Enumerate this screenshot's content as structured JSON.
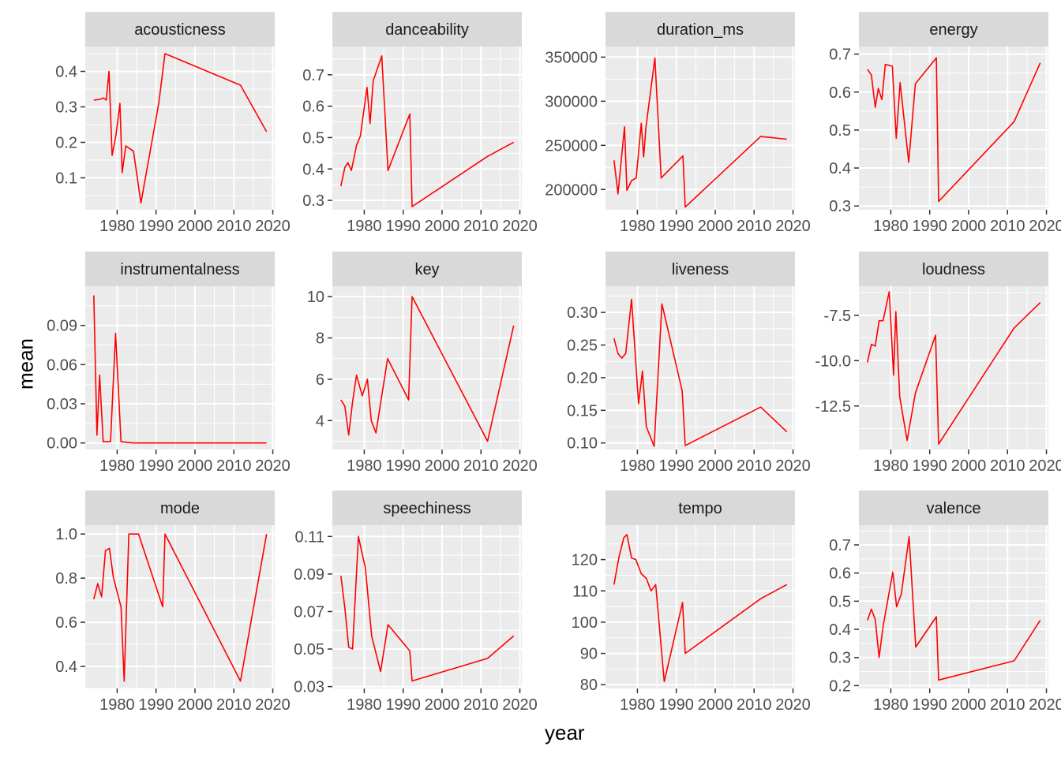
{
  "chart_data": {
    "type": "line",
    "xlabel": "year",
    "ylabel": "mean",
    "x_ticks": [
      1980,
      1990,
      2000,
      2010,
      2020
    ],
    "line_color": "#ff0000",
    "panel_background": "#ebebeb",
    "strip_background": "#d9d9d9",
    "grid": true,
    "panels": [
      {
        "title": "acousticness",
        "ylim": [
          0.01,
          0.47
        ],
        "yticks": [
          {
            "v": 0.1,
            "label": "0.1"
          },
          {
            "v": 0.2,
            "label": "0.2"
          },
          {
            "v": 0.3,
            "label": "0.3"
          },
          {
            "v": 0.4,
            "label": "0.4"
          }
        ],
        "x": [
          1974,
          1975.5,
          1976.5,
          1977.2,
          1977.9,
          1978.7,
          1979.7,
          1980.7,
          1981.3,
          1982.2,
          1984.2,
          1986.1,
          1990.7,
          1992.3,
          2011.7,
          2018.4
        ],
        "y": [
          0.319,
          0.321,
          0.325,
          0.319,
          0.4,
          0.163,
          0.22,
          0.31,
          0.115,
          0.19,
          0.175,
          0.029,
          0.31,
          0.45,
          0.361,
          0.23
        ]
      },
      {
        "title": "danceability",
        "ylim": [
          0.27,
          0.79
        ],
        "yticks": [
          {
            "v": 0.3,
            "label": "0.3"
          },
          {
            "v": 0.4,
            "label": "0.4"
          },
          {
            "v": 0.5,
            "label": "0.5"
          },
          {
            "v": 0.6,
            "label": "0.6"
          },
          {
            "v": 0.7,
            "label": "0.7"
          }
        ],
        "x": [
          1974,
          1975,
          1975.8,
          1976.7,
          1978,
          1979,
          1980.7,
          1981.5,
          1982.3,
          1984.5,
          1986.1,
          1991.7,
          1992.3,
          2011.7,
          2018.4
        ],
        "y": [
          0.345,
          0.405,
          0.42,
          0.395,
          0.475,
          0.505,
          0.66,
          0.545,
          0.68,
          0.76,
          0.395,
          0.575,
          0.28,
          0.44,
          0.485
        ]
      },
      {
        "title": "duration_ms",
        "ylim": [
          177000,
          362000
        ],
        "yticks": [
          {
            "v": 200000,
            "label": "200000"
          },
          {
            "v": 250000,
            "label": "250000"
          },
          {
            "v": 300000,
            "label": "300000"
          },
          {
            "v": 350000,
            "label": "350000"
          }
        ],
        "x": [
          1974,
          1975,
          1976.7,
          1977.3,
          1978.5,
          1979.7,
          1981,
          1981.6,
          1982.2,
          1984.5,
          1986.1,
          1991.7,
          1992.3,
          2011.7,
          2018.4
        ],
        "y": [
          233000,
          195000,
          271000,
          199000,
          210000,
          213000,
          275000,
          237000,
          271000,
          349000,
          213000,
          238000,
          180000,
          260000,
          257000
        ]
      },
      {
        "title": "energy",
        "ylim": [
          0.29,
          0.72
        ],
        "yticks": [
          {
            "v": 0.3,
            "label": "0.3"
          },
          {
            "v": 0.4,
            "label": "0.4"
          },
          {
            "v": 0.5,
            "label": "0.5"
          },
          {
            "v": 0.6,
            "label": "0.6"
          },
          {
            "v": 0.7,
            "label": "0.7"
          }
        ],
        "x": [
          1974,
          1975,
          1976,
          1976.8,
          1977.7,
          1978.6,
          1980.4,
          1981.4,
          1982.4,
          1984.6,
          1986.3,
          1991.7,
          1992.3,
          2011.7,
          2018.4
        ],
        "y": [
          0.66,
          0.645,
          0.56,
          0.61,
          0.58,
          0.673,
          0.668,
          0.478,
          0.625,
          0.415,
          0.622,
          0.69,
          0.312,
          0.522,
          0.677
        ]
      },
      {
        "title": "instrumentalness",
        "ylim": [
          -0.005,
          0.12
        ],
        "yticks": [
          {
            "v": 0,
            "label": "0.00"
          },
          {
            "v": 0.03,
            "label": "0.03"
          },
          {
            "v": 0.06,
            "label": "0.06"
          },
          {
            "v": 0.09,
            "label": "0.09"
          }
        ],
        "x": [
          1974,
          1974.8,
          1975.5,
          1976.4,
          1977.4,
          1978.3,
          1979.6,
          1981,
          1983,
          1984.2,
          2018.4
        ],
        "y": [
          0.113,
          0.006,
          0.052,
          0.001,
          0.001,
          0.001,
          0.084,
          0.001,
          0.0003,
          0.0,
          0.0
        ]
      },
      {
        "title": "key",
        "ylim": [
          2.6,
          10.5
        ],
        "yticks": [
          {
            "v": 4,
            "label": "4"
          },
          {
            "v": 6,
            "label": "6"
          },
          {
            "v": 8,
            "label": "8"
          },
          {
            "v": 10,
            "label": "10"
          }
        ],
        "x": [
          1974,
          1975,
          1976,
          1977,
          1978,
          1979.5,
          1980.8,
          1981.8,
          1983,
          1986,
          1991.4,
          1992.3,
          2011.7,
          2018.4
        ],
        "y": [
          5,
          4.7,
          3.3,
          4.9,
          6.2,
          5.2,
          6,
          4,
          3.4,
          7,
          5,
          10,
          3,
          8.6
        ]
      },
      {
        "title": "liveness",
        "ylim": [
          0.09,
          0.34
        ],
        "yticks": [
          {
            "v": 0.1,
            "label": "0.10"
          },
          {
            "v": 0.15,
            "label": "0.15"
          },
          {
            "v": 0.2,
            "label": "0.20"
          },
          {
            "v": 0.25,
            "label": "0.25"
          },
          {
            "v": 0.3,
            "label": "0.30"
          }
        ],
        "x": [
          1974,
          1975,
          1976,
          1977,
          1978.5,
          1980.3,
          1981.3,
          1982.3,
          1984.3,
          1986.3,
          1991.5,
          1992.3,
          2011.7,
          2018.4
        ],
        "y": [
          0.26,
          0.237,
          0.23,
          0.237,
          0.32,
          0.16,
          0.21,
          0.125,
          0.095,
          0.313,
          0.18,
          0.096,
          0.155,
          0.117
        ]
      },
      {
        "title": "loudness",
        "ylim": [
          -14.9,
          -5.9
        ],
        "yticks": [
          {
            "v": -12.5,
            "label": "-12.5"
          },
          {
            "v": -10,
            "label": "-10.0"
          },
          {
            "v": -7.5,
            "label": "-7.5"
          }
        ],
        "x": [
          1974,
          1975,
          1976,
          1977,
          1978,
          1979.6,
          1980.7,
          1981.3,
          1982.3,
          1984.2,
          1986.3,
          1991.5,
          1992.3,
          2011.7,
          2018.4
        ],
        "y": [
          -10.1,
          -9.1,
          -9.2,
          -7.8,
          -7.8,
          -6.2,
          -10.8,
          -7.3,
          -12,
          -14.4,
          -11.8,
          -8.6,
          -14.6,
          -8.2,
          -6.8
        ]
      },
      {
        "title": "mode",
        "ylim": [
          0.3,
          1.04
        ],
        "yticks": [
          {
            "v": 0.4,
            "label": "0.4"
          },
          {
            "v": 0.6,
            "label": "0.6"
          },
          {
            "v": 0.8,
            "label": "0.8"
          },
          {
            "v": 1.0,
            "label": "1.0"
          }
        ],
        "x": [
          1974,
          1975,
          1976,
          1977,
          1978,
          1979,
          1981,
          1981.8,
          1983,
          1985.5,
          1991.7,
          1992.3,
          2011.7,
          2018.4
        ],
        "y": [
          0.705,
          0.775,
          0.715,
          0.925,
          0.935,
          0.805,
          0.67,
          0.333,
          1,
          1,
          0.67,
          1,
          0.333,
          1
        ]
      },
      {
        "title": "speechiness",
        "ylim": [
          0.029,
          0.116
        ],
        "yticks": [
          {
            "v": 0.03,
            "label": "0.03"
          },
          {
            "v": 0.05,
            "label": "0.05"
          },
          {
            "v": 0.07,
            "label": "0.07"
          },
          {
            "v": 0.09,
            "label": "0.09"
          },
          {
            "v": 0.11,
            "label": "0.11"
          }
        ],
        "x": [
          1974,
          1975,
          1976,
          1977,
          1978.5,
          1980.3,
          1981.9,
          1984.2,
          1986.1,
          1991.7,
          1992.3,
          2011.7,
          2018.4
        ],
        "y": [
          0.089,
          0.072,
          0.051,
          0.05,
          0.11,
          0.093,
          0.057,
          0.038,
          0.063,
          0.049,
          0.033,
          0.045,
          0.057
        ]
      },
      {
        "title": "tempo",
        "ylim": [
          78.8,
          131
        ],
        "yticks": [
          {
            "v": 80,
            "label": "80"
          },
          {
            "v": 90,
            "label": "90"
          },
          {
            "v": 100,
            "label": "100"
          },
          {
            "v": 110,
            "label": "110"
          },
          {
            "v": 120,
            "label": "120"
          }
        ],
        "x": [
          1974,
          1975.3,
          1976.5,
          1977.3,
          1978.5,
          1979.6,
          1981,
          1982.3,
          1983.5,
          1984.7,
          1986.9,
          1991.6,
          1992.3,
          2011.7,
          2018.4
        ],
        "y": [
          112,
          121,
          127,
          128,
          120.5,
          120,
          115.5,
          114,
          110,
          112,
          81,
          106.3,
          90,
          107.5,
          112
        ]
      },
      {
        "title": "valence",
        "ylim": [
          0.19,
          0.77
        ],
        "yticks": [
          {
            "v": 0.2,
            "label": "0.2"
          },
          {
            "v": 0.3,
            "label": "0.3"
          },
          {
            "v": 0.4,
            "label": "0.4"
          },
          {
            "v": 0.5,
            "label": "0.5"
          },
          {
            "v": 0.6,
            "label": "0.6"
          },
          {
            "v": 0.7,
            "label": "0.7"
          }
        ],
        "x": [
          1974,
          1975,
          1976,
          1977,
          1978,
          1979,
          1980.5,
          1981.5,
          1982.7,
          1984.7,
          1986.4,
          1991.7,
          1992.3,
          2011.7,
          2018.4
        ],
        "y": [
          0.432,
          0.472,
          0.435,
          0.3,
          0.41,
          0.487,
          0.603,
          0.48,
          0.525,
          0.73,
          0.337,
          0.445,
          0.22,
          0.288,
          0.432
        ]
      }
    ]
  }
}
